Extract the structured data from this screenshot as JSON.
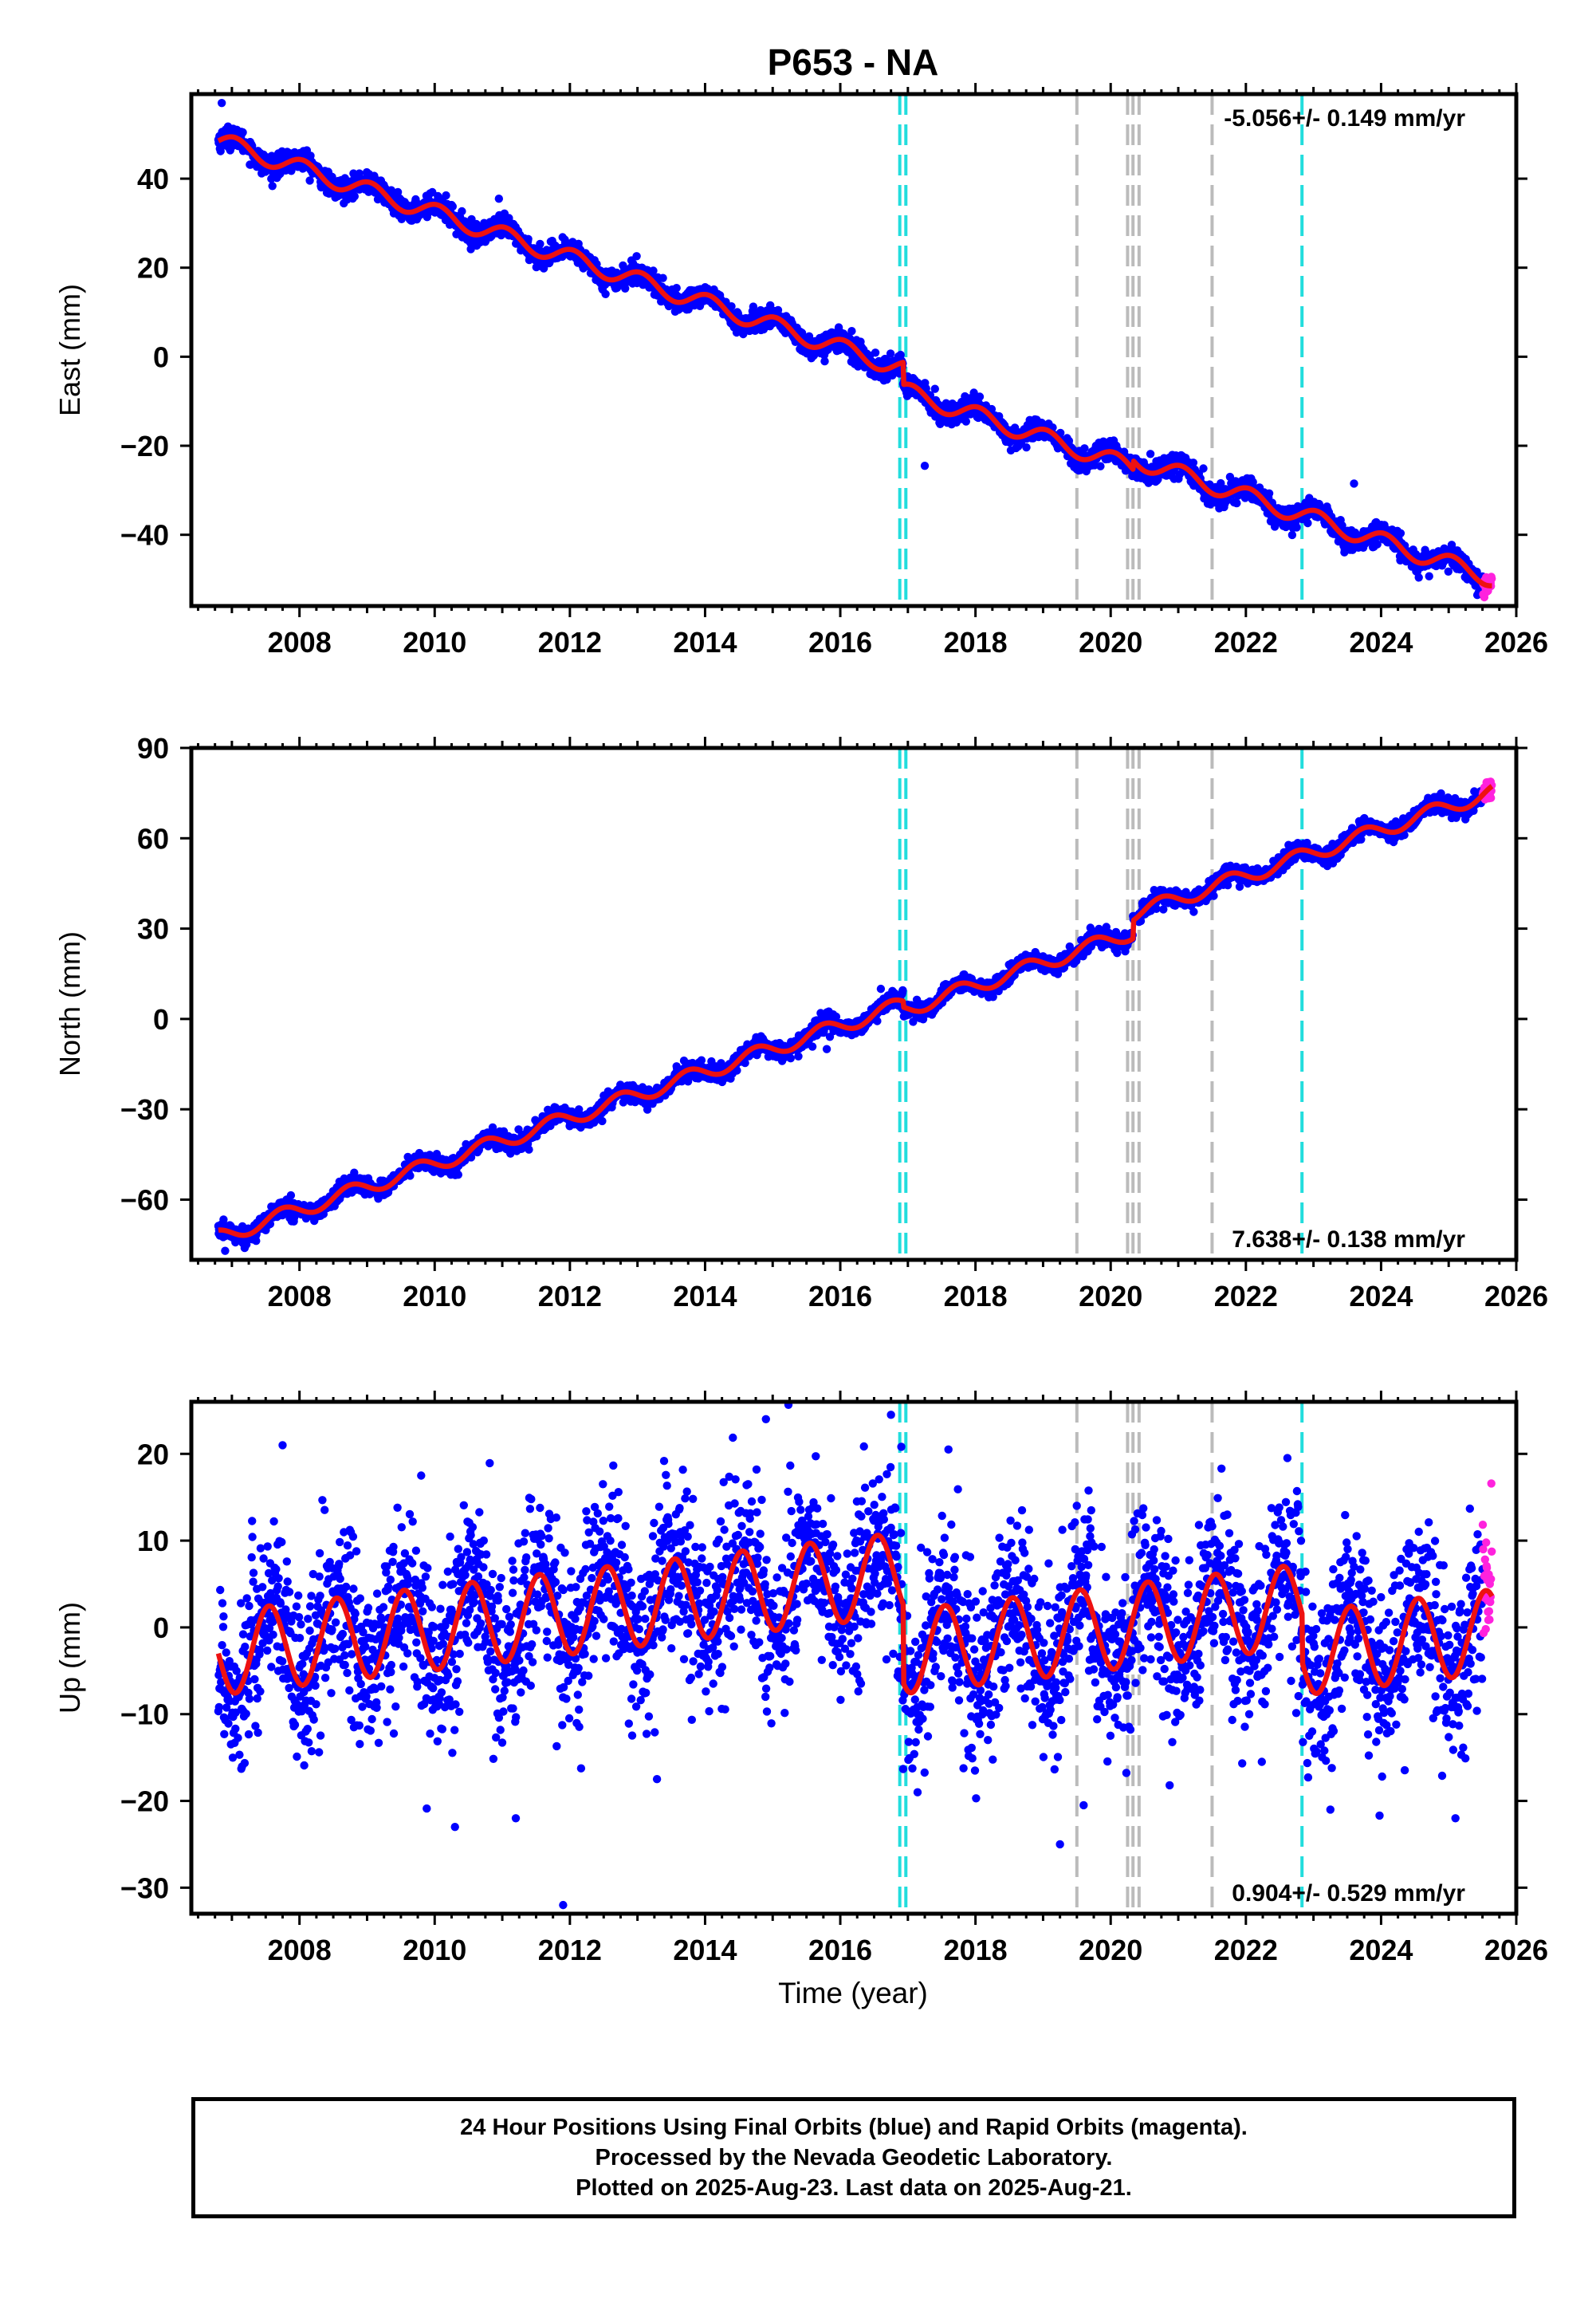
{
  "title": "P653 - NA",
  "x_axis_label": "Time (year)",
  "colors": {
    "final_orbits": "#0000ff",
    "rapid_orbits": "#ff22dd",
    "model_fit": "#ee1111",
    "equipment_change": "#22dddd",
    "earthquake": "#bbbbbb",
    "frame": "#000000"
  },
  "event_lines": {
    "cyan": [
      2016.88,
      2016.97,
      2022.83
    ],
    "gray": [
      2019.5,
      2020.25,
      2020.33,
      2020.42,
      2021.5
    ]
  },
  "caption": {
    "line1": "24 Hour Positions Using Final Orbits (blue) and Rapid Orbits (magenta).",
    "line2": "Processed by the Nevada Geodetic Laboratory.",
    "line3": "Plotted on 2025-Aug-23. Last data on 2025-Aug-21."
  },
  "chart_data": [
    {
      "type": "scatter",
      "id": "east",
      "ylabel": "East (mm)",
      "rate_label": "-5.056+/- 0.149 mm/yr",
      "rate_position": "top-right",
      "xlim": [
        2006.4,
        2026.0
      ],
      "ylim": [
        -56,
        59
      ],
      "x_ticks": [
        2008,
        2010,
        2012,
        2014,
        2016,
        2018,
        2020,
        2022,
        2024,
        2026
      ],
      "x_tick_labels": [
        "2008",
        "2010",
        "2012",
        "2014",
        "2016",
        "2018",
        "2020",
        "2022",
        "2024",
        "2026"
      ],
      "y_ticks": [
        -40,
        -20,
        0,
        20,
        40
      ],
      "y_tick_labels": [
        "−40",
        "−20",
        "0",
        "20",
        "40"
      ],
      "data_start": 2006.8,
      "data_end": 2025.64,
      "rapid_start": 2025.5,
      "model": {
        "reference_epoch": 2006.8,
        "intercept_mm": 48.5,
        "rate_mm_per_yr": -5.056,
        "annual_amplitude_mm": 2.0,
        "annual_phase": 0.8,
        "steps": [
          {
            "epoch": 2016.93,
            "offset_mm": -5.0
          },
          {
            "epoch": 2020.33,
            "offset_mm": 2.0
          }
        ]
      },
      "scatter_sd_mm": 1.2,
      "outliers": [
        [
          2006.85,
          57.0
        ],
        [
          2010.95,
          35.5
        ],
        [
          2017.25,
          -24.5
        ],
        [
          2023.6,
          -28.5
        ],
        [
          2023.55,
          -43.0
        ]
      ]
    },
    {
      "type": "scatter",
      "id": "north",
      "ylabel": "North (mm)",
      "rate_label": "7.638+/- 0.138 mm/yr",
      "rate_position": "bottom-right",
      "xlim": [
        2006.4,
        2026.0
      ],
      "ylim": [
        -80,
        90
      ],
      "x_ticks": [
        2008,
        2010,
        2012,
        2014,
        2016,
        2018,
        2020,
        2022,
        2024,
        2026
      ],
      "x_tick_labels": [
        "2008",
        "2010",
        "2012",
        "2014",
        "2016",
        "2018",
        "2020",
        "2022",
        "2024",
        "2026"
      ],
      "y_ticks": [
        -60,
        -30,
        0,
        30,
        60,
        90
      ],
      "y_tick_labels": [
        "−60",
        "−30",
        "0",
        "30",
        "60",
        "90"
      ],
      "data_start": 2006.8,
      "data_end": 2025.64,
      "rapid_start": 2025.5,
      "model": {
        "reference_epoch": 2006.8,
        "intercept_mm": -72.5,
        "rate_mm_per_yr": 7.638,
        "annual_amplitude_mm": 2.5,
        "annual_phase": 0.5,
        "steps": [
          {
            "epoch": 2016.93,
            "offset_mm": -2.0
          },
          {
            "epoch": 2020.33,
            "offset_mm": 6.0
          }
        ]
      },
      "scatter_sd_mm": 1.4,
      "outliers": [
        [
          2006.9,
          -77.0
        ],
        [
          2015.8,
          -10.0
        ],
        [
          2016.6,
          10.0
        ]
      ]
    },
    {
      "type": "scatter",
      "id": "up",
      "ylabel": "Up (mm)",
      "rate_label": "0.904+/- 0.529 mm/yr",
      "rate_position": "bottom-right",
      "xlim": [
        2006.4,
        2026.0
      ],
      "ylim": [
        -33,
        26
      ],
      "x_ticks": [
        2008,
        2010,
        2012,
        2014,
        2016,
        2018,
        2020,
        2022,
        2024,
        2026
      ],
      "x_tick_labels": [
        "2008",
        "2010",
        "2012",
        "2014",
        "2016",
        "2018",
        "2020",
        "2022",
        "2024",
        "2026"
      ],
      "y_ticks": [
        -30,
        -20,
        -10,
        0,
        10,
        20
      ],
      "y_tick_labels": [
        "−30",
        "−20",
        "−10",
        "0",
        "10",
        "20"
      ],
      "data_start": 2006.8,
      "data_end": 2025.64,
      "rapid_start": 2025.5,
      "model": {
        "reference_epoch": 2006.8,
        "intercept_mm": -3.0,
        "rate_mm_per_yr": 0.904,
        "annual_amplitude_mm": 4.8,
        "annual_phase": 0.3,
        "steps": [
          {
            "epoch": 2016.93,
            "offset_mm": -9.0
          },
          {
            "epoch": 2022.83,
            "offset_mm": -5.5
          }
        ]
      },
      "scatter_sd_mm": 4.3,
      "outliers": [
        [
          2007.75,
          21.0
        ],
        [
          2009.8,
          17.5
        ],
        [
          2010.3,
          -23.0
        ],
        [
          2011.2,
          -22.0
        ],
        [
          2011.9,
          -32.0
        ],
        [
          2014.9,
          24.0
        ],
        [
          2016.75,
          24.5
        ],
        [
          2017.6,
          20.5
        ],
        [
          2019.25,
          -25.0
        ],
        [
          2019.6,
          -20.5
        ],
        [
          2023.25,
          -21.0
        ],
        [
          2025.1,
          -22.0
        ]
      ]
    }
  ]
}
